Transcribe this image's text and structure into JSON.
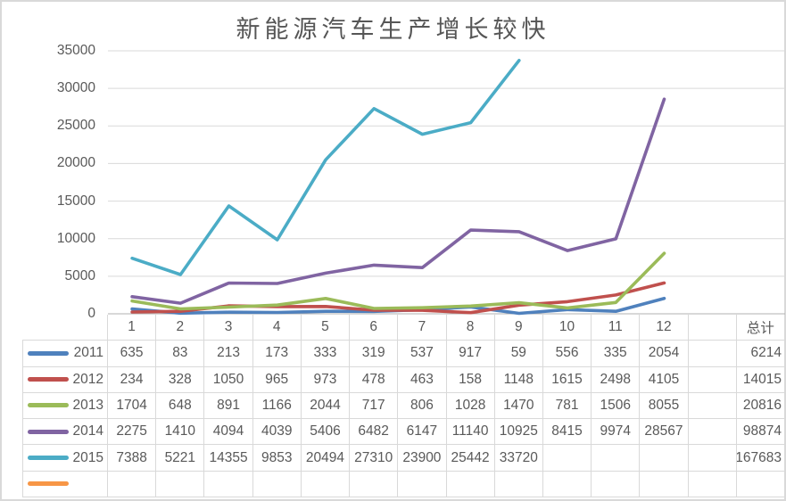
{
  "chart_data": {
    "type": "line",
    "title": "新能源汽车生产增长较快",
    "xlabel": "",
    "ylabel": "",
    "ylim": [
      0,
      35000
    ],
    "y_ticks": [
      0,
      5000,
      10000,
      15000,
      20000,
      25000,
      30000,
      35000
    ],
    "grid": true,
    "legend_position": "data-table-left",
    "categories": [
      "1",
      "2",
      "3",
      "4",
      "5",
      "6",
      "7",
      "8",
      "9",
      "10",
      "11",
      "12"
    ],
    "total_label": "总计",
    "series": [
      {
        "name": "2011",
        "color": "#4F81BD",
        "values": [
          635,
          83,
          213,
          173,
          333,
          319,
          537,
          917,
          59,
          556,
          335,
          2054
        ],
        "total": 6214
      },
      {
        "name": "2012",
        "color": "#C0504D",
        "values": [
          234,
          328,
          1050,
          965,
          973,
          478,
          463,
          158,
          1148,
          1615,
          2498,
          4105
        ],
        "total": 14015
      },
      {
        "name": "2013",
        "color": "#9BBB59",
        "values": [
          1704,
          648,
          891,
          1166,
          2044,
          717,
          806,
          1028,
          1470,
          781,
          1506,
          8055
        ],
        "total": 20816
      },
      {
        "name": "2014",
        "color": "#8064A2",
        "values": [
          2275,
          1410,
          4094,
          4039,
          5406,
          6482,
          6147,
          11140,
          10925,
          8415,
          9974,
          28567
        ],
        "total": 98874
      },
      {
        "name": "2015",
        "color": "#4BACC6",
        "values": [
          7388,
          5221,
          14355,
          9853,
          20494,
          27310,
          23900,
          25442,
          33720,
          null,
          null,
          null
        ],
        "total": 167683
      },
      {
        "name": "",
        "color": "#F79646",
        "values": [
          null,
          null,
          null,
          null,
          null,
          null,
          null,
          null,
          null,
          null,
          null,
          null
        ],
        "total": null
      }
    ],
    "colors": {
      "text": "#595959",
      "gridline": "#D9D9D9",
      "axis_line": "#B0B0B0",
      "table_border": "#D9D9D9"
    }
  }
}
